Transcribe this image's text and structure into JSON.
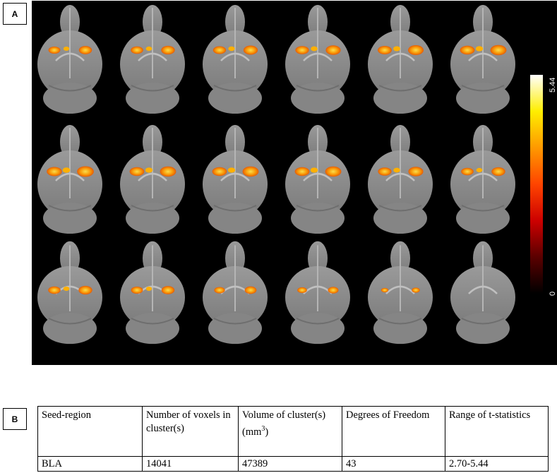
{
  "panels": {
    "a_label": "A",
    "b_label": "B"
  },
  "figure": {
    "colorbar": {
      "min_label": "0",
      "max_label": "5.44",
      "min": 0,
      "max": 5.44,
      "colors": [
        "#000000",
        "#5a0000",
        "#cc0000",
        "#ff4400",
        "#ff9900",
        "#ffee00",
        "#ffffff"
      ]
    },
    "grid": {
      "rows": 3,
      "cols": 6
    },
    "activation_intensity": [
      [
        0.55,
        0.6,
        0.65,
        0.7,
        0.75,
        0.8
      ],
      [
        0.85,
        0.8,
        0.8,
        0.8,
        0.7,
        0.6
      ],
      [
        0.6,
        0.55,
        0.45,
        0.35,
        0.15,
        0.0
      ]
    ],
    "background_color": "#000000",
    "brain_color": "#8a8a8a"
  },
  "table": {
    "headers": [
      "Seed-region",
      "Number of voxels in cluster(s)",
      "Volume of cluster(s)",
      "Degrees of Freedom",
      "Range of t-statistics"
    ],
    "volume_unit_base": "mm",
    "volume_unit_sup": "3",
    "rows": [
      [
        "BLA",
        "14041",
        "47389",
        "43",
        "2.70-5.44"
      ]
    ]
  }
}
